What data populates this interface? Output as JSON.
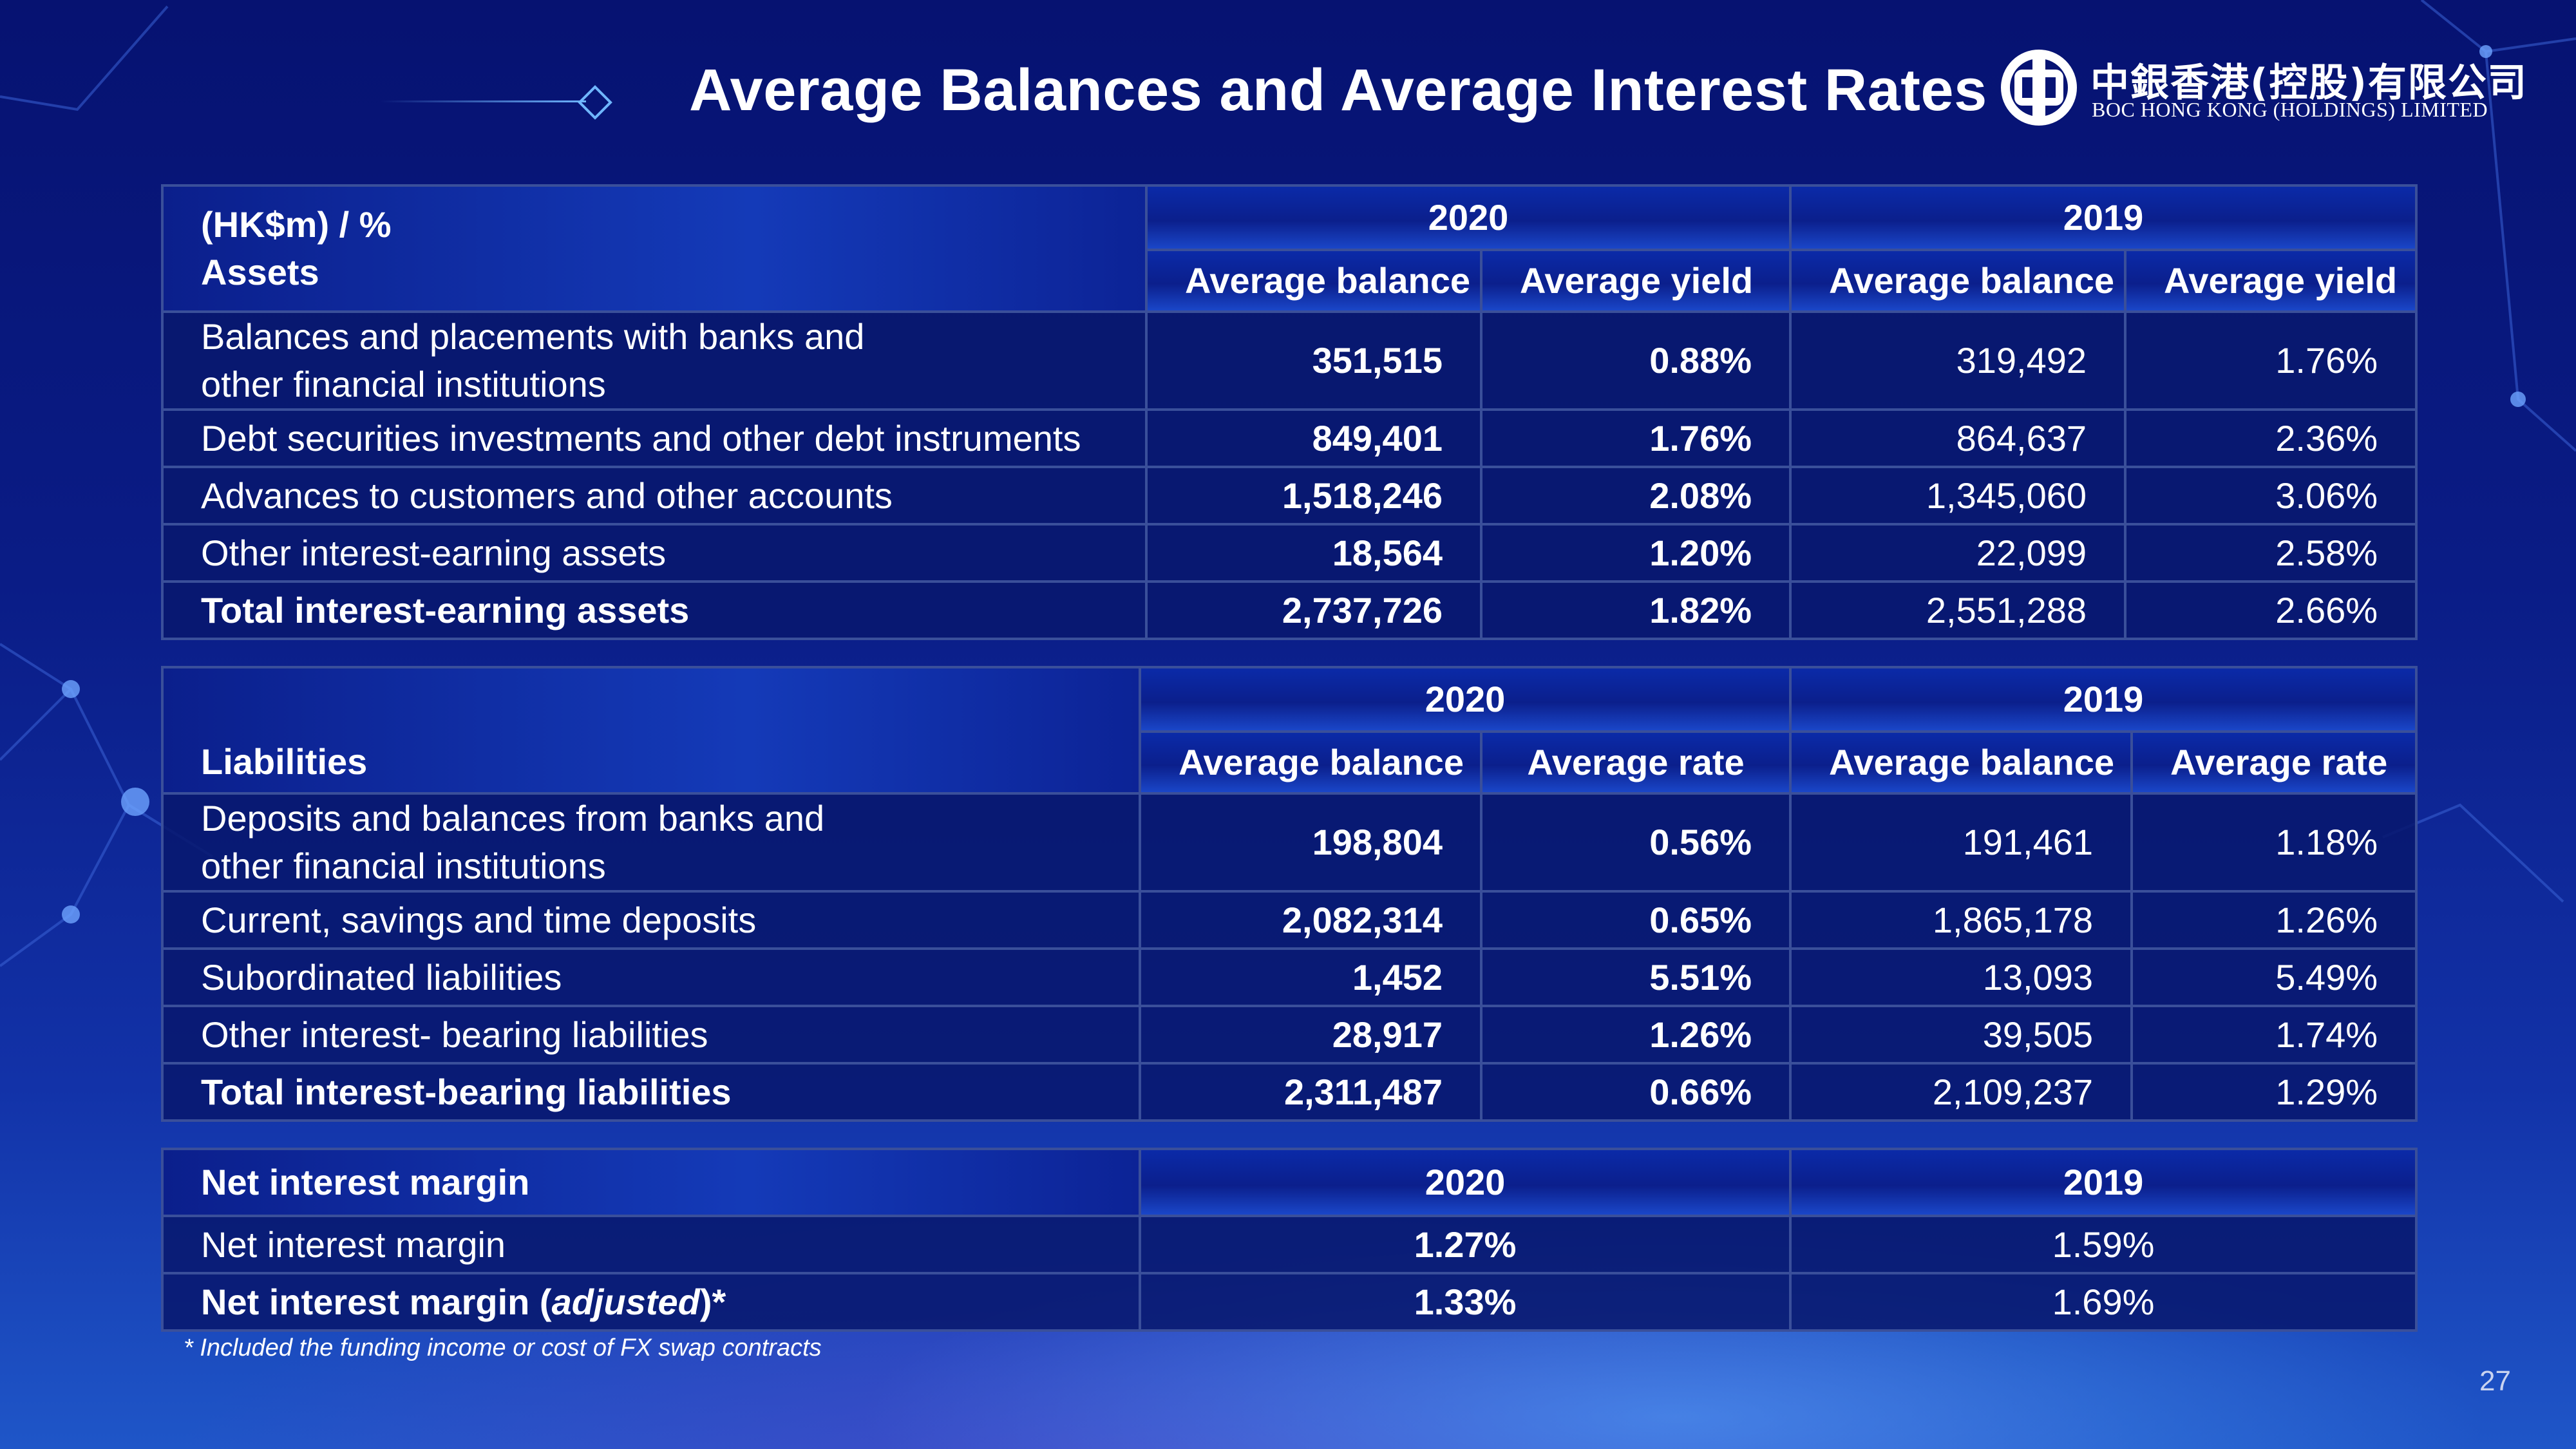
{
  "title": "Average Balances and Average Interest Rates",
  "logo": {
    "cn": "中銀香港(控股)有限公司",
    "en": "BOC HONG KONG (HOLDINGS) LIMITED"
  },
  "assets": {
    "unit": "(HK$m) / %",
    "section": "Assets",
    "years": [
      "2020",
      "2019"
    ],
    "columns": [
      "Average balance",
      "Average yield",
      "Average balance",
      "Average yield"
    ],
    "rows": [
      {
        "label1": "Balances and placements with banks and",
        "label2": "other financial institutions",
        "v": [
          "351,515",
          "0.88%",
          "319,492",
          "1.76%"
        ]
      },
      {
        "label": "Debt securities investments and other debt instruments",
        "v": [
          "849,401",
          "1.76%",
          "864,637",
          "2.36%"
        ]
      },
      {
        "label": "Advances to customers and other accounts",
        "v": [
          "1,518,246",
          "2.08%",
          "1,345,060",
          "3.06%"
        ]
      },
      {
        "label": "Other interest-earning assets",
        "v": [
          "18,564",
          "1.20%",
          "22,099",
          "2.58%"
        ]
      },
      {
        "label": "Total interest-earning assets",
        "v": [
          "2,737,726",
          "1.82%",
          "2,551,288",
          "2.66%"
        ]
      }
    ]
  },
  "liabilities": {
    "section": "Liabilities",
    "years": [
      "2020",
      "2019"
    ],
    "columns": [
      "Average balance",
      "Average rate",
      "Average balance",
      "Average rate"
    ],
    "rows": [
      {
        "label1": "Deposits and balances from banks and",
        "label2": "other financial institutions",
        "v": [
          "198,804",
          "0.56%",
          "191,461",
          "1.18%"
        ]
      },
      {
        "label": "Current, savings and time deposits",
        "v": [
          "2,082,314",
          "0.65%",
          "1,865,178",
          "1.26%"
        ]
      },
      {
        "label": "Subordinated liabilities",
        "v": [
          "1,452",
          "5.51%",
          "13,093",
          "5.49%"
        ]
      },
      {
        "label": "Other interest- bearing liabilities",
        "v": [
          "28,917",
          "1.26%",
          "39,505",
          "1.74%"
        ]
      },
      {
        "label": "Total interest-bearing liabilities",
        "v": [
          "2,311,487",
          "0.66%",
          "2,109,237",
          "1.29%"
        ]
      }
    ]
  },
  "nim": {
    "section": "Net interest margin",
    "years": [
      "2020",
      "2019"
    ],
    "rows": [
      {
        "label": "Net interest margin",
        "v": [
          "1.27%",
          "1.59%"
        ]
      },
      {
        "label_pre": "Net interest margin (",
        "label_it": "adjusted",
        "label_post": ")*",
        "v": [
          "1.33%",
          "1.69%"
        ]
      }
    ]
  },
  "footnote": "* Included the funding income or cost of FX swap contracts",
  "page_number": "27"
}
